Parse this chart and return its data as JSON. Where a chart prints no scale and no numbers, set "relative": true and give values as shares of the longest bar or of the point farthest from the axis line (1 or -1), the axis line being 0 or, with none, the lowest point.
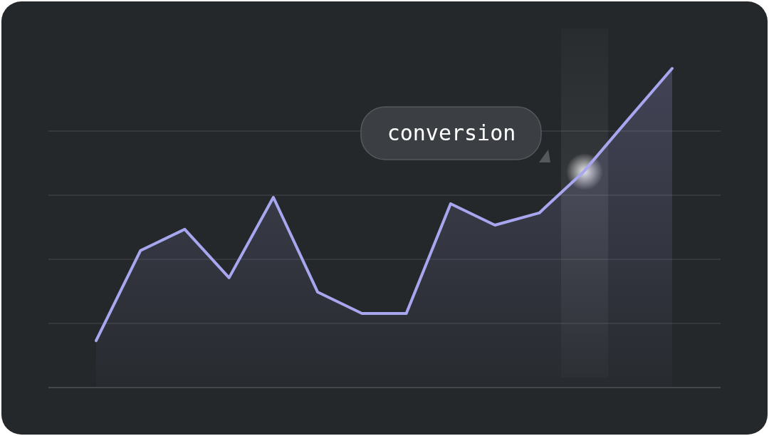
{
  "chart_data": {
    "type": "area",
    "relative": true,
    "categories": [
      null,
      null,
      null,
      null,
      null,
      null,
      null,
      null,
      null,
      null,
      null,
      null,
      null,
      null
    ],
    "series": [
      {
        "color": "#a9a6f0",
        "values": [
          0.147,
          0.429,
          0.496,
          0.344,
          0.596,
          0.299,
          0.232,
          0.232,
          0.576,
          0.509,
          0.547,
          0.676,
          0.839,
          1
        ]
      }
    ],
    "grid": "y",
    "annotations": [
      "conversion"
    ]
  }
}
